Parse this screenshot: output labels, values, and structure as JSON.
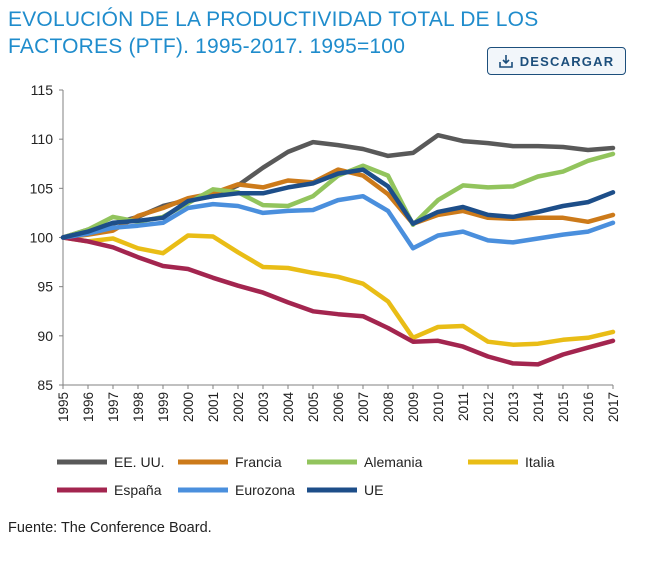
{
  "title_line1": "EVOLUCIÓN DE LA PRODUCTIVIDAD TOTAL DE LOS",
  "title_line2": "FACTORES (PTF). 1995-2017. 1995=100",
  "download_label": "DESCARGAR",
  "download_icon": "download-icon",
  "source": "Fuente: The Conference Board.",
  "chart_data": {
    "type": "line",
    "x": [
      "1995",
      "1996",
      "1997",
      "1998",
      "1999",
      "2000",
      "2001",
      "2002",
      "2003",
      "2004",
      "2005",
      "2006",
      "2007",
      "2008",
      "2009",
      "2010",
      "2011",
      "2012",
      "2013",
      "2014",
      "2015",
      "2016",
      "2017"
    ],
    "ylim": [
      85,
      115
    ],
    "yticks": [
      85,
      90,
      95,
      100,
      105,
      110,
      115
    ],
    "grid": false,
    "legend_position": "bottom",
    "series": [
      {
        "name": "EE. UU.",
        "color": "#595959",
        "values": [
          100,
          100.8,
          101.4,
          102.1,
          103.2,
          103.8,
          104.2,
          105.3,
          107.1,
          108.7,
          109.7,
          109.4,
          109.0,
          108.3,
          108.6,
          110.4,
          109.8,
          109.6,
          109.3,
          109.3,
          109.2,
          108.9,
          109.1
        ]
      },
      {
        "name": "Francia",
        "color": "#cc7a1a",
        "values": [
          100,
          100.3,
          100.7,
          102.2,
          103.0,
          104.0,
          104.5,
          105.4,
          105.1,
          105.8,
          105.6,
          106.9,
          106.3,
          104.4,
          101.4,
          102.3,
          102.7,
          102.0,
          101.9,
          102.0,
          102.0,
          101.6,
          102.3
        ]
      },
      {
        "name": "Alemania",
        "color": "#92c45d",
        "values": [
          100,
          100.8,
          102.1,
          101.6,
          102.1,
          103.5,
          104.9,
          104.6,
          103.3,
          103.2,
          104.2,
          106.3,
          107.3,
          106.3,
          101.3,
          103.8,
          105.3,
          105.1,
          105.2,
          106.2,
          106.7,
          107.8,
          108.5
        ]
      },
      {
        "name": "Italia",
        "color": "#e9bd16",
        "values": [
          100,
          99.6,
          99.9,
          98.9,
          98.4,
          100.2,
          100.1,
          98.5,
          97.0,
          96.9,
          96.4,
          96.0,
          95.3,
          93.5,
          89.8,
          90.9,
          91.0,
          89.4,
          89.1,
          89.2,
          89.6,
          89.8,
          90.4
        ]
      },
      {
        "name": "España",
        "color": "#a3254f",
        "values": [
          100,
          99.6,
          99.0,
          98.0,
          97.1,
          96.8,
          95.9,
          95.1,
          94.4,
          93.4,
          92.5,
          92.2,
          92.0,
          90.8,
          89.4,
          89.5,
          88.9,
          87.9,
          87.2,
          87.1,
          88.1,
          88.8,
          89.5
        ]
      },
      {
        "name": "Eurozona",
        "color": "#4a8fdd",
        "values": [
          100,
          100.4,
          101.0,
          101.2,
          101.5,
          103.0,
          103.4,
          103.2,
          102.5,
          102.7,
          102.8,
          103.8,
          104.2,
          102.7,
          98.9,
          100.2,
          100.6,
          99.7,
          99.5,
          99.9,
          100.3,
          100.6,
          101.5
        ]
      },
      {
        "name": "UE",
        "color": "#1d4e89",
        "values": [
          100,
          100.6,
          101.5,
          101.7,
          102.0,
          103.7,
          104.2,
          104.5,
          104.5,
          105.1,
          105.5,
          106.5,
          106.9,
          105.2,
          101.4,
          102.6,
          103.1,
          102.3,
          102.1,
          102.6,
          103.2,
          103.6,
          104.6
        ]
      }
    ]
  }
}
